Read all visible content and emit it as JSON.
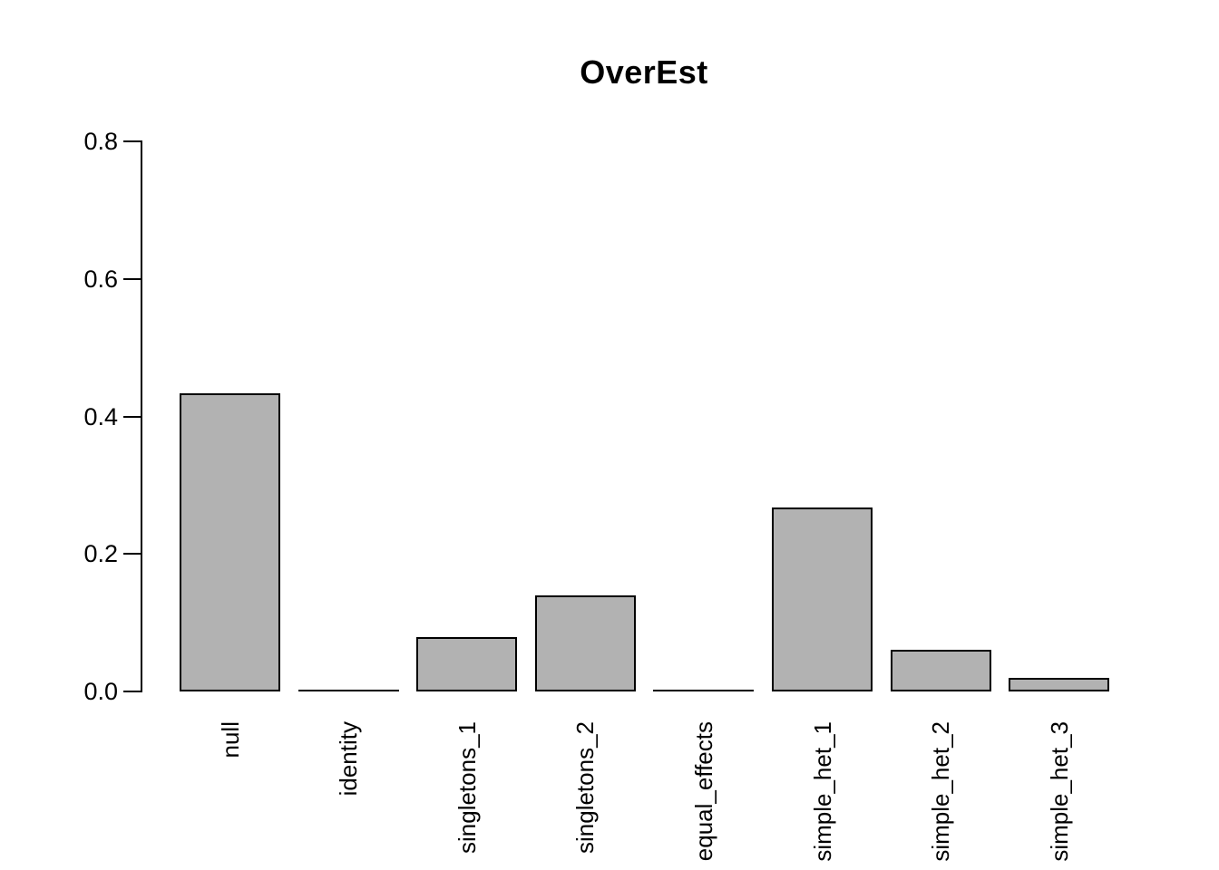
{
  "chart_data": {
    "type": "bar",
    "title": "OverEst",
    "categories": [
      "null",
      "identity",
      "singletons_1",
      "singletons_2",
      "equal_effects",
      "simple_het_1",
      "simple_het_2",
      "simple_het_3"
    ],
    "values": [
      0.434,
      0,
      0.079,
      0.14,
      0,
      0.267,
      0.061,
      0.02
    ],
    "xlabel": "",
    "ylabel": "",
    "ylim": [
      0,
      0.8
    ],
    "yticks": [
      0,
      0.2,
      0.4,
      0.6,
      0.8
    ],
    "ytick_labels": [
      "0.0",
      "0.2",
      "0.4",
      "0.6",
      "0.8"
    ],
    "grid": false,
    "legend": "none",
    "x_label_rotation": -90,
    "colors": {
      "bar_fill": "#b2b2b2",
      "bar_border": "#000000",
      "axis": "#000000",
      "background": "#ffffff",
      "text": "#000000"
    }
  }
}
